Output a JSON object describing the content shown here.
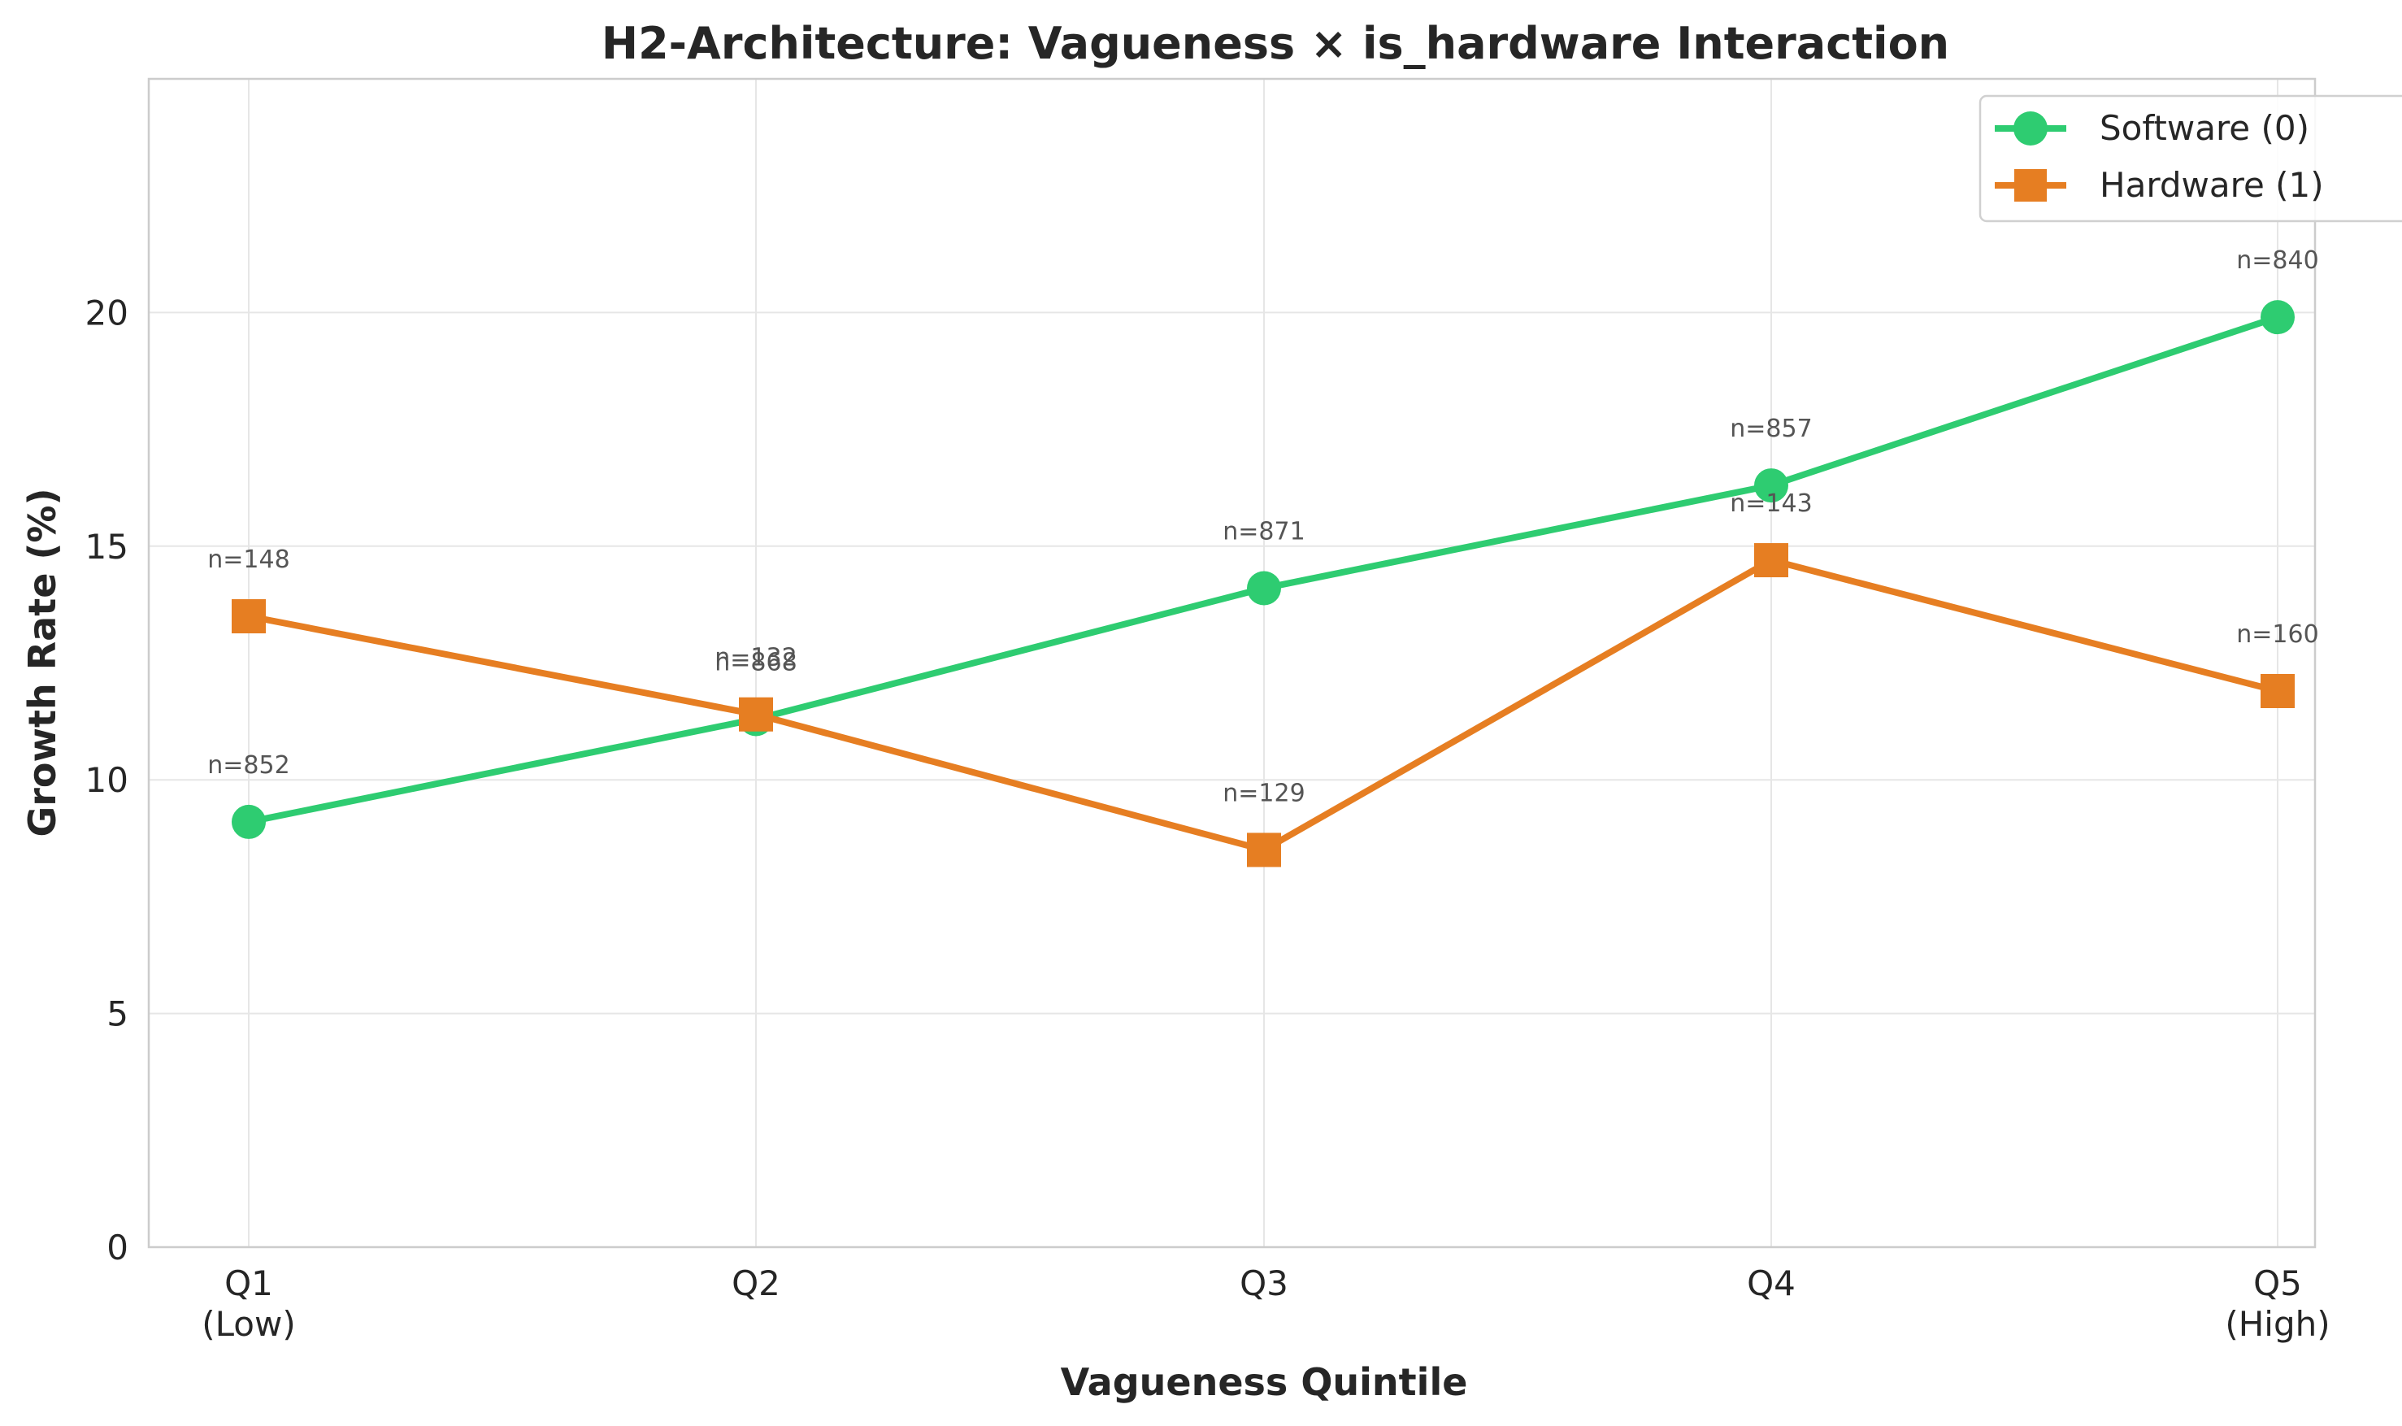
{
  "chart_data": {
    "type": "line",
    "title": "H2-Architecture: Vagueness × is_hardware Interaction",
    "xlabel": "Vagueness Quintile",
    "ylabel": "Growth Rate (%)",
    "categories": [
      [
        "Q1",
        "(Low)"
      ],
      [
        "Q2"
      ],
      [
        "Q3"
      ],
      [
        "Q4"
      ],
      [
        "Q5",
        "(High)"
      ]
    ],
    "ylim": [
      0,
      25
    ],
    "yticks": [
      0,
      5,
      10,
      15,
      20
    ],
    "grid": true,
    "legend_position": "top-right",
    "series": [
      {
        "name": "Software (0)",
        "marker": "circle",
        "color": "#2ecc71",
        "values": [
          9.1,
          11.3,
          14.1,
          16.3,
          19.9
        ],
        "n_labels": [
          "n=852",
          "n=868",
          "n=871",
          "n=857",
          "n=840"
        ]
      },
      {
        "name": "Hardware (1)",
        "marker": "square",
        "color": "#e67e22",
        "values": [
          13.5,
          11.4,
          8.5,
          14.7,
          11.9
        ],
        "n_labels": [
          "n=148",
          "n=132",
          "n=129",
          "n=143",
          "n=160"
        ]
      }
    ]
  }
}
